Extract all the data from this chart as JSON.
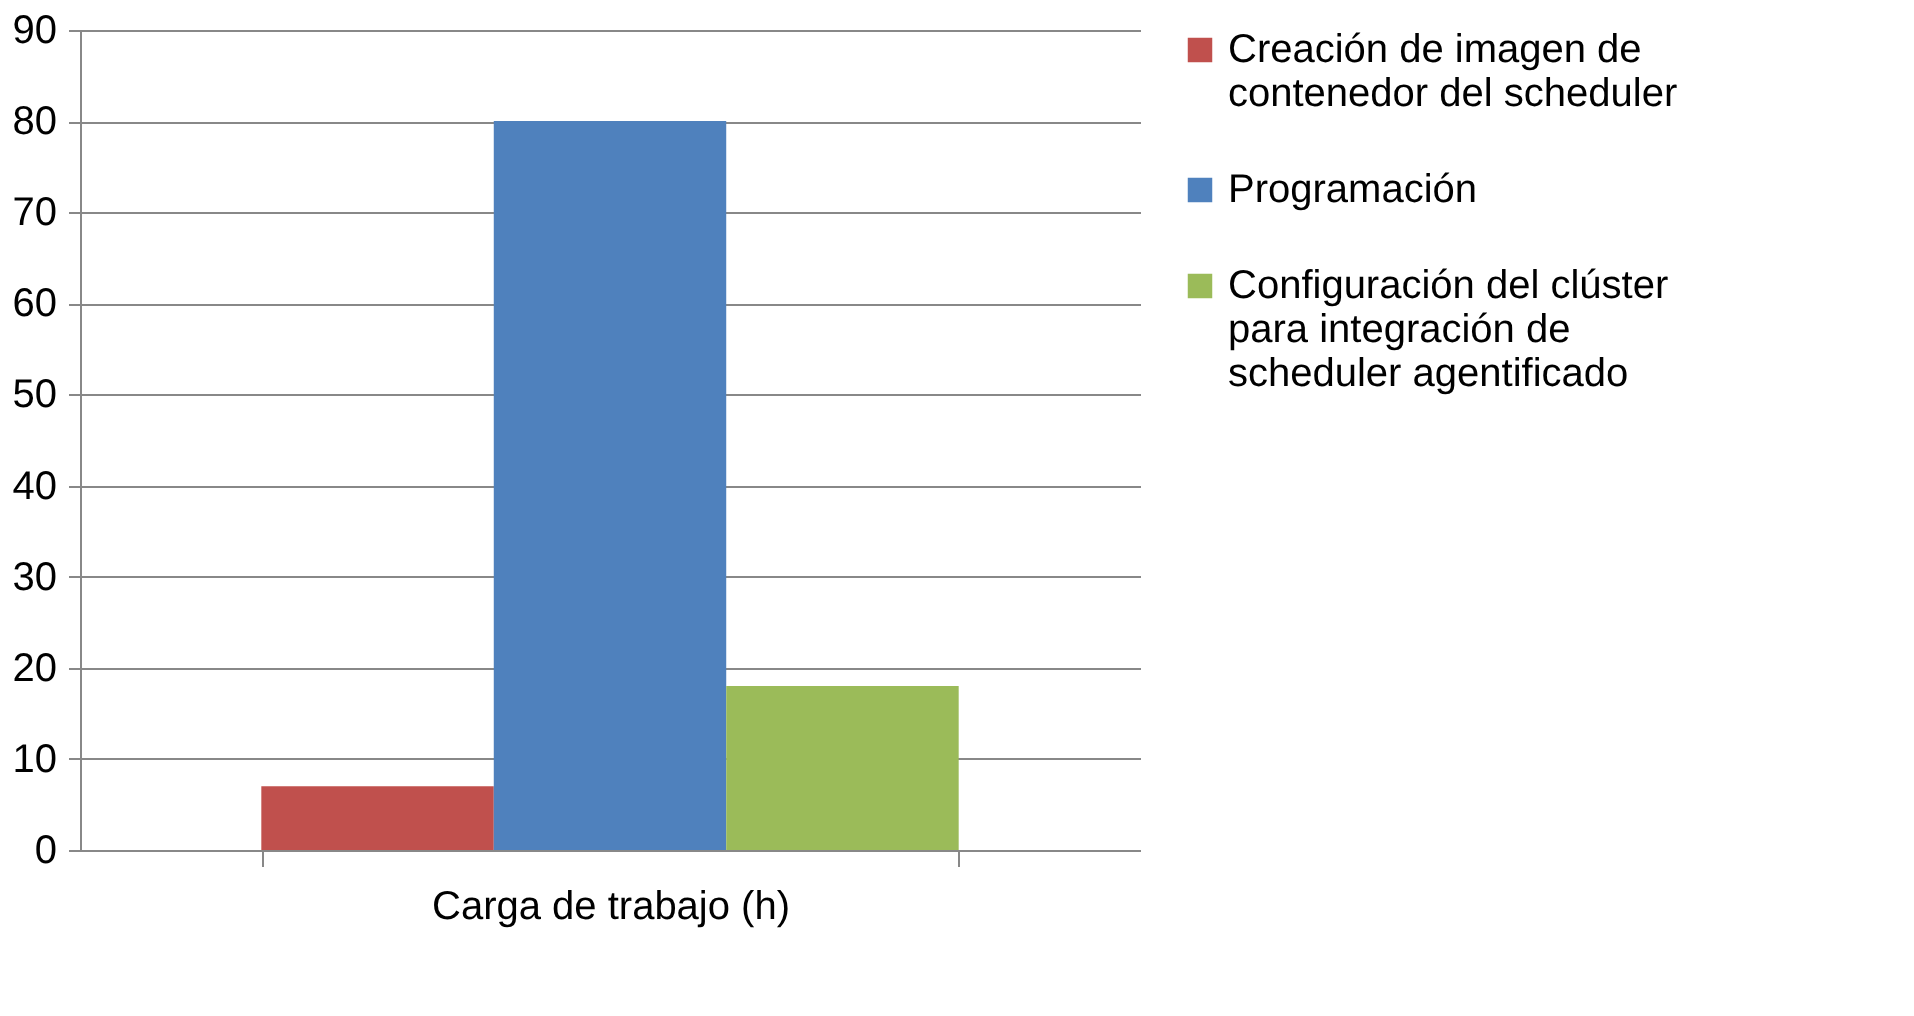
{
  "chart_data": {
    "type": "bar",
    "categories": [
      "Carga de trabajo (h)"
    ],
    "series": [
      {
        "name": "Creación de imagen de contenedor del scheduler",
        "color": "#c0504d",
        "values": [
          7
        ]
      },
      {
        "name": "Programación",
        "color": "#4f81bd",
        "values": [
          80
        ]
      },
      {
        "name": "Configuración del clúster para integración de scheduler agentificado",
        "color": "#9bbb59",
        "values": [
          18
        ]
      }
    ],
    "ylim": [
      0,
      90
    ],
    "yticks": [
      0,
      10,
      20,
      30,
      40,
      50,
      60,
      70,
      80,
      90
    ],
    "grid": "y",
    "legend": "right"
  }
}
